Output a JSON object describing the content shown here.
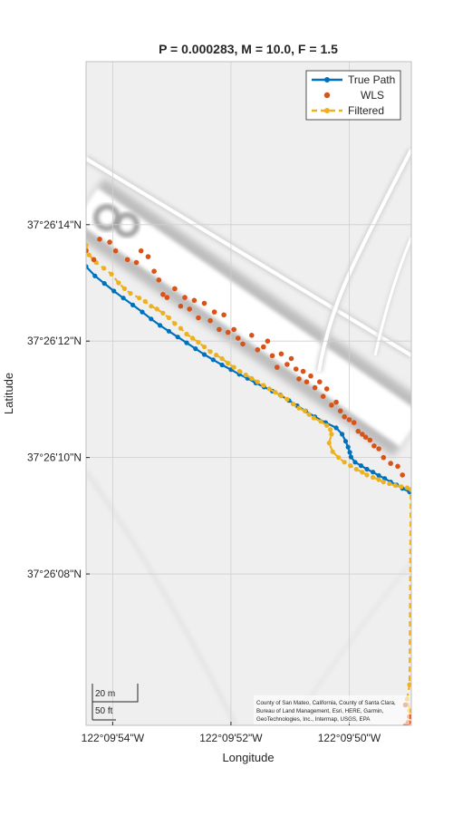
{
  "figure": {
    "title": "P = 0.000283, M = 10.0, F = 1.5",
    "xlabel": "Longitude",
    "ylabel": "Latitude"
  },
  "axes": {
    "lon_ticks": [
      "122°09'54\"W",
      "122°09'52\"W",
      "122°09'50\"W"
    ],
    "lat_ticks": [
      "37°26'14\"N",
      "37°26'12\"N",
      "37°26'10\"N",
      "37°26'08\"N"
    ],
    "grid": true
  },
  "legend": {
    "placement": "top-right",
    "entries": [
      "True Path",
      "WLS",
      "Filtered"
    ]
  },
  "scalebar": {
    "metric": "20 m",
    "imperial": "50 ft"
  },
  "attribution": [
    "County of San Mateo, California, County of Santa Clara,",
    "Bureau of Land Management, Esri, HERE, Garmin,",
    "GeoTechnologies, Inc., Intermap, USGS, EPA"
  ],
  "colors": {
    "true_path": "#0072BD",
    "wls": "#D95319",
    "filtered": "#EDB120",
    "map_bg": "#EFEFEF",
    "road_shadow": "#BDBDBD"
  },
  "chart_data": {
    "type": "scatter",
    "lon_unit": "arcseconds west of 122°09'",
    "lat_unit": "arcseconds north of 37°26'",
    "xlim": [
      54.45,
      48.95
    ],
    "ylim": [
      5.4,
      16.8
    ],
    "series": [
      {
        "name": "True Path",
        "style": "line-marker",
        "lon": [
          54.45,
          54.3,
          54.14,
          53.98,
          53.82,
          53.66,
          53.5,
          53.35,
          53.2,
          53.05,
          52.9,
          52.75,
          52.6,
          52.45,
          52.3,
          52.15,
          52.0,
          51.86,
          51.72,
          51.58,
          51.44,
          51.3,
          51.16,
          51.02,
          50.88,
          50.74,
          50.58,
          50.4,
          50.22,
          50.12,
          50.06,
          50.02,
          49.99,
          49.97,
          49.9,
          49.8,
          49.7,
          49.6,
          49.5,
          49.4,
          49.3,
          49.2,
          49.1,
          48.98
        ],
        "lat": [
          13.28,
          13.12,
          12.99,
          12.86,
          12.74,
          12.62,
          12.5,
          12.38,
          12.27,
          12.17,
          12.07,
          11.97,
          11.87,
          11.77,
          11.68,
          11.59,
          11.51,
          11.43,
          11.36,
          11.28,
          11.21,
          11.14,
          11.07,
          10.98,
          10.89,
          10.8,
          10.7,
          10.6,
          10.51,
          10.4,
          10.28,
          10.18,
          10.09,
          10.01,
          9.92,
          9.86,
          9.8,
          9.75,
          9.69,
          9.64,
          9.58,
          9.53,
          9.47,
          9.41
        ]
      },
      {
        "name": "WLS",
        "style": "marker",
        "lon": [
          54.45,
          54.22,
          54.32,
          54.05,
          53.95,
          53.75,
          53.6,
          53.52,
          53.4,
          53.3,
          53.22,
          53.15,
          53.08,
          52.95,
          52.85,
          52.78,
          52.7,
          52.62,
          52.55,
          52.45,
          52.35,
          52.28,
          52.2,
          52.12,
          52.05,
          51.95,
          51.88,
          51.8,
          51.65,
          51.55,
          51.45,
          51.38,
          51.3,
          51.22,
          51.15,
          51.05,
          50.98,
          50.9,
          50.85,
          50.78,
          50.72,
          50.65,
          50.58,
          50.5,
          50.44,
          50.38,
          50.3,
          50.22,
          50.15,
          50.08,
          50.0,
          49.92,
          49.85,
          49.78,
          49.72,
          49.65,
          49.58,
          49.5,
          49.42,
          49.3,
          49.18,
          49.1,
          49.05,
          48.98,
          49.05,
          49.0
        ],
        "lat": [
          13.55,
          13.75,
          13.4,
          13.7,
          13.55,
          13.4,
          13.35,
          13.55,
          13.45,
          13.2,
          13.05,
          12.8,
          12.75,
          12.9,
          12.6,
          12.75,
          12.55,
          12.7,
          12.4,
          12.65,
          12.35,
          12.5,
          12.2,
          12.45,
          12.15,
          12.2,
          12.05,
          11.95,
          12.1,
          11.85,
          11.9,
          12.0,
          11.75,
          11.55,
          11.78,
          11.6,
          11.7,
          11.52,
          11.35,
          11.48,
          11.3,
          11.4,
          11.2,
          11.3,
          11.05,
          11.18,
          10.9,
          10.95,
          10.8,
          10.7,
          10.65,
          10.6,
          10.45,
          10.4,
          10.35,
          10.3,
          10.2,
          10.15,
          10.0,
          9.9,
          9.85,
          9.7,
          5.75,
          5.55,
          5.4,
          5.45
        ]
      },
      {
        "name": "Filtered",
        "style": "dashed-marker",
        "lon": [
          54.45,
          54.4,
          54.28,
          54.15,
          54.02,
          53.9,
          53.8,
          53.7,
          53.55,
          53.45,
          53.35,
          53.25,
          53.15,
          53.05,
          52.95,
          52.85,
          52.75,
          52.65,
          52.55,
          52.45,
          52.35,
          52.25,
          52.15,
          52.05,
          51.95,
          51.85,
          51.75,
          51.65,
          51.55,
          51.45,
          51.35,
          51.25,
          51.15,
          51.05,
          50.95,
          50.85,
          50.75,
          50.68,
          50.6,
          50.48,
          50.38,
          50.32,
          50.3,
          50.34,
          50.28,
          50.18,
          50.08,
          49.98,
          49.88,
          49.78,
          49.7,
          49.6,
          49.5,
          49.42,
          49.32,
          49.22,
          49.12,
          49.02,
          48.96,
          48.98,
          49.02,
          48.98
        ],
        "lat": [
          13.65,
          13.48,
          13.35,
          13.25,
          13.15,
          13.0,
          12.9,
          12.82,
          12.74,
          12.68,
          12.6,
          12.55,
          12.48,
          12.4,
          12.3,
          12.22,
          12.12,
          12.05,
          11.98,
          11.9,
          11.82,
          11.76,
          11.7,
          11.62,
          11.55,
          11.48,
          11.42,
          11.36,
          11.3,
          11.24,
          11.18,
          11.12,
          11.06,
          11.0,
          10.92,
          10.85,
          10.8,
          10.74,
          10.68,
          10.62,
          10.55,
          10.48,
          10.4,
          10.25,
          10.1,
          10.0,
          9.92,
          9.86,
          9.8,
          9.75,
          9.7,
          9.66,
          9.62,
          9.58,
          9.55,
          9.52,
          9.5,
          9.48,
          9.45,
          6.1,
          5.85,
          5.65
        ]
      }
    ]
  }
}
